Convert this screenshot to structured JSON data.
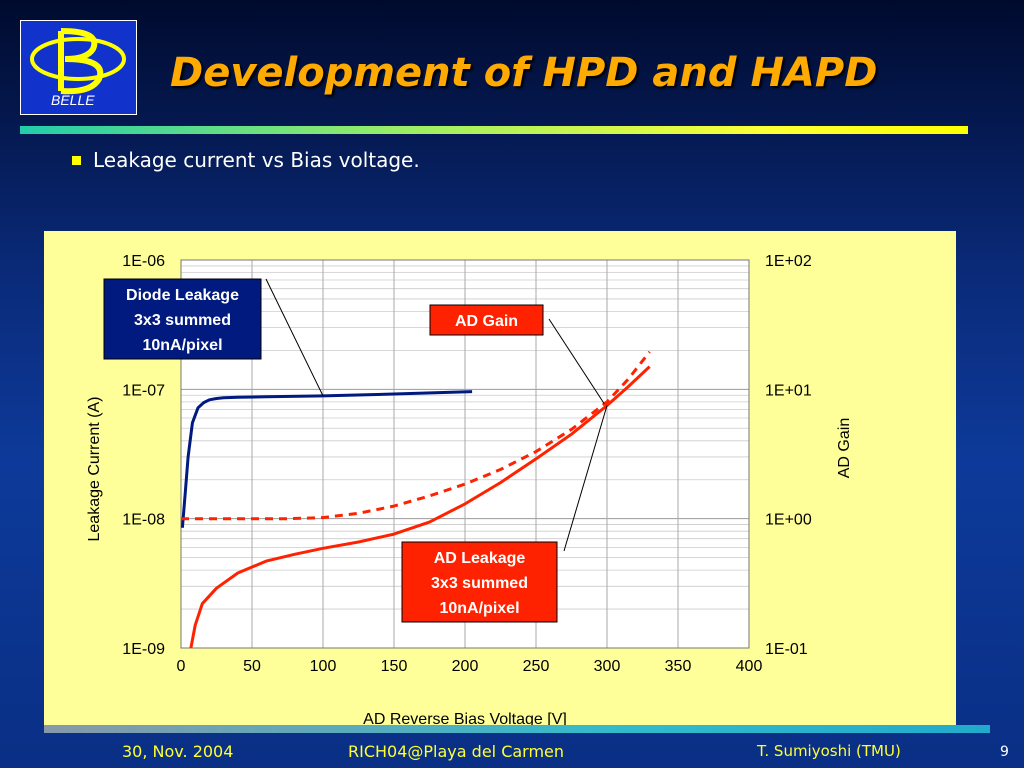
{
  "logo": {
    "text": "BELLE"
  },
  "title": "Development of HPD and HAPD",
  "bullet": "Leakage current vs Bias voltage.",
  "footer": {
    "date": "30, Nov. 2004",
    "conference": "RICH04@Playa del Carmen",
    "author": "T. Sumiyoshi (TMU)",
    "page": "9"
  },
  "colors": {
    "title": "#ffaa00",
    "diode_line": "#001a80",
    "ad_line": "#ff2200",
    "panel": "#ffff99"
  },
  "chart_data": {
    "type": "line",
    "xlabel": "AD Reverse Bias Voltage [V]",
    "ylabel": "Leakage Current (A)",
    "y2label": "AD Gain",
    "xlim": [
      0,
      400
    ],
    "xticks": [
      "0",
      "50",
      "100",
      "150",
      "200",
      "250",
      "300",
      "350",
      "400"
    ],
    "ylim": [
      1e-09,
      1e-06
    ],
    "yscale": "log",
    "yticks": [
      "1E-06",
      "1E-07",
      "1E-08",
      "1E-09"
    ],
    "y2lim": [
      0.1,
      100
    ],
    "y2scale": "log",
    "y2ticks": [
      "1E+02",
      "1E+01",
      "1E+00",
      "1E-01"
    ],
    "grid": true,
    "series": [
      {
        "name": "Diode Leakage",
        "axis": "left",
        "style": "solid",
        "color": "#001a80",
        "x": [
          1,
          3,
          5,
          8,
          12,
          16,
          20,
          25,
          30,
          40,
          60,
          100,
          150,
          205
        ],
        "y": [
          8.5e-09,
          1.6e-08,
          3e-08,
          5.5e-08,
          7.2e-08,
          7.9e-08,
          8.3e-08,
          8.5e-08,
          8.6e-08,
          8.7e-08,
          8.75e-08,
          8.9e-08,
          9.2e-08,
          9.6e-08
        ]
      },
      {
        "name": "AD Gain",
        "axis": "right",
        "style": "dashed",
        "color": "#ff2200",
        "x": [
          0,
          25,
          50,
          75,
          100,
          125,
          150,
          175,
          200,
          225,
          250,
          275,
          300,
          315,
          330
        ],
        "y": [
          1.0,
          1.0,
          1.0,
          1.0,
          1.02,
          1.1,
          1.25,
          1.5,
          1.85,
          2.4,
          3.3,
          4.9,
          8.0,
          12.0,
          19.5
        ]
      },
      {
        "name": "AD Leakage",
        "axis": "left",
        "style": "solid",
        "color": "#ff2200",
        "x": [
          7,
          10,
          15,
          25,
          40,
          60,
          80,
          100,
          125,
          150,
          175,
          200,
          225,
          250,
          275,
          300,
          315,
          330
        ],
        "y": [
          1e-09,
          1.5e-09,
          2.2e-09,
          2.9e-09,
          3.8e-09,
          4.7e-09,
          5.3e-09,
          5.9e-09,
          6.6e-09,
          7.6e-09,
          9.4e-09,
          1.3e-08,
          1.9e-08,
          2.9e-08,
          4.5e-08,
          7.5e-08,
          1.05e-07,
          1.5e-07
        ]
      }
    ],
    "annotations": [
      {
        "lines": [
          "Diode Leakage",
          "3x3 summed",
          "10nA/pixel"
        ],
        "style": "navy-box"
      },
      {
        "lines": [
          "AD Gain"
        ],
        "style": "red-box"
      },
      {
        "lines": [
          "AD Leakage",
          "3x3 summed",
          "10nA/pixel"
        ],
        "style": "red-box"
      }
    ]
  }
}
